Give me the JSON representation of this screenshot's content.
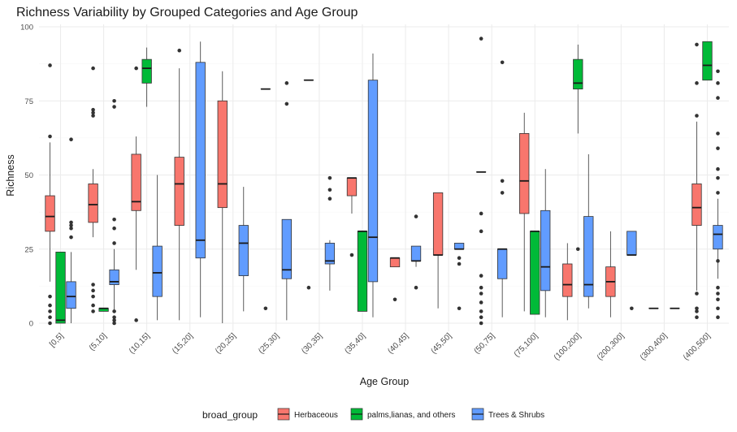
{
  "chart_data": {
    "type": "boxplot",
    "title": "Richness Variability by Grouped Categories and Age Group",
    "xlabel": "Age Group",
    "ylabel": "Richness",
    "ylim": [
      -2,
      101
    ],
    "yticks": [
      0,
      25,
      50,
      75,
      100
    ],
    "categories": [
      "[0,5]",
      "(5,10]",
      "(10,15]",
      "(15,20]",
      "(20,25]",
      "(25,30]",
      "(30,35]",
      "(35,40]",
      "(40,45]",
      "(45,50]",
      "(50,75]",
      "(75,100]",
      "(100,200]",
      "(200,300]",
      "(300,400]",
      "(400,500]"
    ],
    "legend": {
      "title": "broad_group",
      "position": "bottom"
    },
    "series": [
      {
        "name": "Herbaceous",
        "color": "#F8766D",
        "boxes": [
          {
            "category": "[0,5]",
            "lower_whisker": 14,
            "q1": 31,
            "median": 36,
            "q3": 43,
            "upper_whisker": 61,
            "outliers": [
              0,
              2,
              4,
              6,
              9,
              63,
              87
            ]
          },
          {
            "category": "(5,10]",
            "lower_whisker": 29,
            "q1": 34,
            "median": 40,
            "q3": 47,
            "upper_whisker": 52,
            "outliers": [
              4,
              6,
              9,
              11,
              13,
              70,
              71,
              72,
              86
            ]
          },
          {
            "category": "(10,15]",
            "lower_whisker": 18,
            "q1": 38,
            "median": 41,
            "q3": 57,
            "upper_whisker": 63,
            "outliers": [
              1,
              86
            ]
          },
          {
            "category": "(15,20]",
            "lower_whisker": 1,
            "q1": 33,
            "median": 47,
            "q3": 56,
            "upper_whisker": 86,
            "outliers": [
              92
            ]
          },
          {
            "category": "(20,25]",
            "lower_whisker": 0,
            "q1": 39,
            "median": 47,
            "q3": 75,
            "upper_whisker": 85,
            "outliers": []
          },
          {
            "category": "(25,30]",
            "lower_whisker": 79,
            "q1": 79,
            "median": 79,
            "q3": 79,
            "upper_whisker": 79,
            "outliers": [
              5
            ]
          },
          {
            "category": "(30,35]",
            "lower_whisker": 82,
            "q1": 82,
            "median": 82,
            "q3": 82,
            "upper_whisker": 82,
            "outliers": [
              12
            ]
          },
          {
            "category": "(35,40]",
            "lower_whisker": 37,
            "q1": 43,
            "median": 49,
            "q3": 49,
            "upper_whisker": 49,
            "outliers": [
              23
            ]
          },
          {
            "category": "(40,45]",
            "lower_whisker": 19,
            "q1": 19,
            "median": 22,
            "q3": 22,
            "upper_whisker": 22,
            "outliers": [
              8
            ]
          },
          {
            "category": "(45,50]",
            "lower_whisker": 5,
            "q1": 23,
            "median": 23,
            "q3": 44,
            "upper_whisker": 44,
            "outliers": []
          },
          {
            "category": "(50,75]",
            "lower_whisker": 51,
            "q1": 51,
            "median": 51,
            "q3": 51,
            "upper_whisker": 51,
            "outliers": [
              0,
              2,
              4,
              7,
              10,
              12,
              16,
              31,
              37,
              96
            ]
          },
          {
            "category": "(75,100]",
            "lower_whisker": 4,
            "q1": 37,
            "median": 48,
            "q3": 64,
            "upper_whisker": 71,
            "outliers": []
          },
          {
            "category": "(100,200]",
            "lower_whisker": 1,
            "q1": 9,
            "median": 13,
            "q3": 20,
            "upper_whisker": 27,
            "outliers": []
          },
          {
            "category": "(200,300]",
            "lower_whisker": 2,
            "q1": 9,
            "median": 14,
            "q3": 19,
            "upper_whisker": 31,
            "outliers": []
          },
          {
            "category": "(300,400]",
            "lower_whisker": 5,
            "q1": 5,
            "median": 5,
            "q3": 5,
            "upper_whisker": 5,
            "outliers": []
          },
          {
            "category": "(400,500]",
            "lower_whisker": 11,
            "q1": 33,
            "median": 39,
            "q3": 47,
            "upper_whisker": 68,
            "outliers": [
              2,
              4,
              5,
              10,
              70,
              81,
              94
            ]
          }
        ]
      },
      {
        "name": "palms,lianas, and others",
        "color": "#00BA38",
        "boxes": [
          {
            "category": "[0,5]",
            "lower_whisker": 0,
            "q1": 0,
            "median": 1,
            "q3": 24,
            "upper_whisker": 24,
            "outliers": []
          },
          {
            "category": "(5,10]",
            "lower_whisker": 4,
            "q1": 4,
            "median": 5,
            "q3": 5,
            "upper_whisker": 5,
            "outliers": []
          },
          {
            "category": "(10,15]",
            "lower_whisker": 73,
            "q1": 81,
            "median": 86,
            "q3": 89,
            "upper_whisker": 93,
            "outliers": []
          },
          {
            "category": "(35,40]",
            "lower_whisker": 4,
            "q1": 4,
            "median": 31,
            "q3": 31,
            "upper_whisker": 31,
            "outliers": []
          },
          {
            "category": "(75,100]",
            "lower_whisker": 3,
            "q1": 3,
            "median": 31,
            "q3": 31,
            "upper_whisker": 31,
            "outliers": []
          },
          {
            "category": "(100,200]",
            "lower_whisker": 64,
            "q1": 79,
            "median": 81,
            "q3": 89,
            "upper_whisker": 94,
            "outliers": [
              25
            ]
          },
          {
            "category": "(400,500]",
            "lower_whisker": 82,
            "q1": 82,
            "median": 87,
            "q3": 95,
            "upper_whisker": 95,
            "outliers": []
          }
        ]
      },
      {
        "name": "Trees & Shrubs",
        "color": "#619CFF",
        "boxes": [
          {
            "category": "[0,5]",
            "lower_whisker": 0,
            "q1": 5,
            "median": 9,
            "q3": 14,
            "upper_whisker": 24,
            "outliers": [
              29,
              32,
              33,
              34,
              62
            ]
          },
          {
            "category": "(5,10]",
            "lower_whisker": 4,
            "q1": 13,
            "median": 14,
            "q3": 18,
            "upper_whisker": 25,
            "outliers": [
              0,
              1,
              2,
              4,
              27,
              32,
              35,
              73,
              75
            ]
          },
          {
            "category": "(10,15]",
            "lower_whisker": 1,
            "q1": 9,
            "median": 17,
            "q3": 26,
            "upper_whisker": 50,
            "outliers": []
          },
          {
            "category": "(15,20]",
            "lower_whisker": 2,
            "q1": 22,
            "median": 28,
            "q3": 88,
            "upper_whisker": 95,
            "outliers": []
          },
          {
            "category": "(20,25]",
            "lower_whisker": 4,
            "q1": 16,
            "median": 27,
            "q3": 33,
            "upper_whisker": 46,
            "outliers": []
          },
          {
            "category": "(25,30]",
            "lower_whisker": 1,
            "q1": 15,
            "median": 18,
            "q3": 35,
            "upper_whisker": 35,
            "outliers": [
              74,
              81
            ]
          },
          {
            "category": "(30,35]",
            "lower_whisker": 11,
            "q1": 20,
            "median": 21,
            "q3": 27,
            "upper_whisker": 28,
            "outliers": [
              42,
              45,
              49
            ]
          },
          {
            "category": "(35,40]",
            "lower_whisker": 2,
            "q1": 14,
            "median": 29,
            "q3": 82,
            "upper_whisker": 91,
            "outliers": []
          },
          {
            "category": "(40,45]",
            "lower_whisker": 19,
            "q1": 21,
            "median": 21,
            "q3": 26,
            "upper_whisker": 26,
            "outliers": [
              12,
              36
            ]
          },
          {
            "category": "(45,50]",
            "lower_whisker": 25,
            "q1": 25,
            "median": 25,
            "q3": 27,
            "upper_whisker": 27,
            "outliers": [
              5,
              20,
              22
            ]
          },
          {
            "category": "(50,75]",
            "lower_whisker": 2,
            "q1": 15,
            "median": 25,
            "q3": 25,
            "upper_whisker": 25,
            "outliers": [
              44,
              48,
              88
            ]
          },
          {
            "category": "(75,100]",
            "lower_whisker": 2,
            "q1": 11,
            "median": 19,
            "q3": 38,
            "upper_whisker": 52,
            "outliers": []
          },
          {
            "category": "(100,200]",
            "lower_whisker": 5,
            "q1": 9,
            "median": 13,
            "q3": 36,
            "upper_whisker": 57,
            "outliers": []
          },
          {
            "category": "(200,300]",
            "lower_whisker": 23,
            "q1": 23,
            "median": 23,
            "q3": 31,
            "upper_whisker": 31,
            "outliers": [
              5
            ]
          },
          {
            "category": "(300,400]",
            "lower_whisker": 5,
            "q1": 5,
            "median": 5,
            "q3": 5,
            "upper_whisker": 5,
            "outliers": []
          },
          {
            "category": "(400,500]",
            "lower_whisker": 15,
            "q1": 25,
            "median": 30,
            "q3": 33,
            "upper_whisker": 42,
            "outliers": [
              2,
              5,
              8,
              10,
              12,
              21,
              44,
              49,
              52,
              59,
              64,
              76,
              81,
              85
            ]
          }
        ]
      }
    ]
  }
}
